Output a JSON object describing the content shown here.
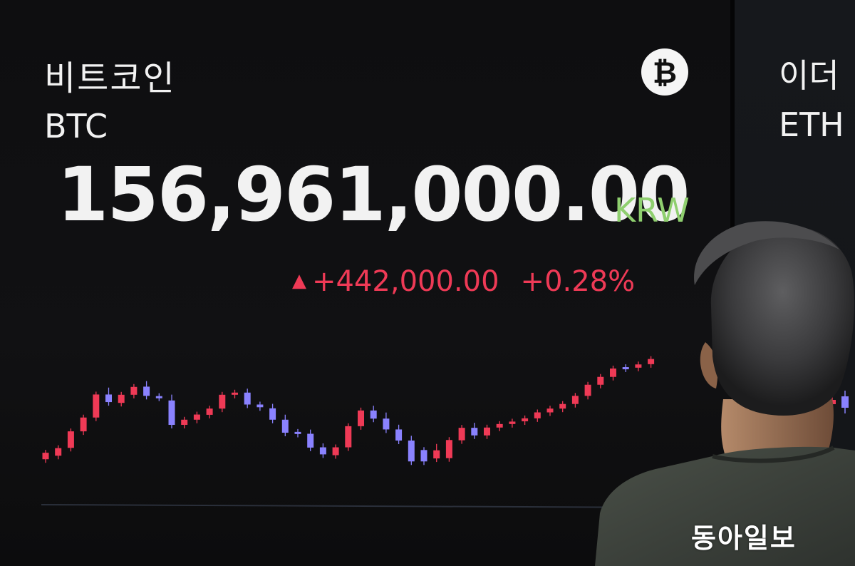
{
  "ticker_main": {
    "name": "비트코인",
    "symbol": "BTC",
    "price": "156,961,000.00",
    "currency": "KRW",
    "change_arrow": "▲",
    "change_value": "+442,000.00",
    "change_percent": "+0.28%",
    "logo_icon": "bitcoin-icon",
    "logo_glyph": "₿"
  },
  "ticker_side": {
    "name": "이더",
    "symbol": "ETH"
  },
  "colors": {
    "up": "#ef3a56",
    "down": "#8a82ff",
    "currency": "#8fcf6f",
    "text": "#f2f2f2"
  },
  "watermark": "동아일보",
  "chart_data": {
    "type": "candlestick",
    "title": "",
    "series": [
      {
        "name": "BTC",
        "candles": [
          [
            0,
            -0.2,
            -2.6,
            0.8,
            "up"
          ],
          [
            1,
            -1.5,
            -4.3,
            -0.5,
            "up"
          ],
          [
            2,
            -4.4,
            -10.5,
            -3.4,
            "up"
          ],
          [
            3,
            -10.5,
            -15.6,
            -9.4,
            "up"
          ],
          [
            4,
            -15.6,
            -24.1,
            -14.0,
            "up"
          ],
          [
            5,
            -24.1,
            -21.3,
            -25.6,
            "down"
          ],
          [
            6,
            -21.0,
            -24.0,
            -17.2,
            "up"
          ],
          [
            7,
            -24.0,
            -26.9,
            -22.7,
            "up"
          ],
          [
            8,
            -27.0,
            -23.6,
            -28.0,
            "down"
          ],
          [
            9,
            -23.5,
            -23.0,
            -22.8,
            "down"
          ],
          [
            10,
            -21.9,
            -12.9,
            -23.0,
            "down"
          ],
          [
            11,
            -12.9,
            -14.8,
            -12.1,
            "up"
          ],
          [
            12,
            -14.8,
            -16.7,
            -14.1,
            "up"
          ],
          [
            13,
            -16.6,
            -18.9,
            -16.0,
            "up"
          ],
          [
            14,
            -18.9,
            -24.0,
            -18.3,
            "up"
          ],
          [
            15,
            -24.0,
            -24.8,
            -23.3,
            "up"
          ],
          [
            16,
            -24.8,
            -20.4,
            -25.2,
            "down"
          ],
          [
            17,
            -20.4,
            -19.4,
            -19.0,
            "down"
          ],
          [
            18,
            -19.0,
            -14.8,
            -19.6,
            "down"
          ],
          [
            19,
            -14.8,
            -10.0,
            -15.6,
            "down"
          ],
          [
            20,
            -10.3,
            -9.6,
            -9.5,
            "down"
          ],
          [
            21,
            -9.6,
            -4.5,
            -10.1,
            "down"
          ],
          [
            22,
            -4.6,
            -2.0,
            -5.0,
            "down"
          ],
          [
            23,
            -1.7,
            -4.6,
            -1.0,
            "up"
          ],
          [
            24,
            -4.6,
            -12.4,
            -4.0,
            "up"
          ],
          [
            25,
            -12.4,
            -18.2,
            -11.6,
            "up"
          ],
          [
            26,
            -18.2,
            -15.2,
            -18.9,
            "down"
          ],
          [
            27,
            -15.2,
            -11.2,
            -16.4,
            "down"
          ],
          [
            28,
            -11.2,
            -7.1,
            -11.9,
            "down"
          ],
          [
            29,
            -7.1,
            0.6,
            -7.8,
            "down"
          ],
          [
            30,
            0.6,
            -3.6,
            1.5,
            "down"
          ],
          [
            31,
            -3.5,
            -0.5,
            -4.8,
            "up"
          ],
          [
            32,
            -0.6,
            -7.3,
            0.4,
            "up"
          ],
          [
            33,
            -7.2,
            -11.8,
            -6.4,
            "up"
          ],
          [
            34,
            -11.8,
            -9.0,
            -12.6,
            "down"
          ],
          [
            35,
            -9.0,
            -11.9,
            -8.3,
            "up"
          ],
          [
            36,
            -11.9,
            -13.2,
            -11.4,
            "up"
          ],
          [
            37,
            -13.2,
            -14.1,
            -12.8,
            "up"
          ],
          [
            38,
            -14.2,
            -15.3,
            -13.9,
            "up"
          ],
          [
            39,
            -15.3,
            -17.5,
            -14.8,
            "up"
          ],
          [
            40,
            -17.5,
            -18.9,
            -17.0,
            "up"
          ],
          [
            41,
            -18.9,
            -20.6,
            -18.3,
            "up"
          ],
          [
            42,
            -20.6,
            -23.6,
            -20.0,
            "up"
          ],
          [
            43,
            -23.6,
            -27.7,
            -22.9,
            "up"
          ],
          [
            44,
            -27.7,
            -30.6,
            -27.0,
            "up"
          ],
          [
            45,
            -30.6,
            -33.7,
            -30.0,
            "up"
          ],
          [
            46,
            -33.7,
            -34.2,
            -33.4,
            "down"
          ],
          [
            47,
            -34.0,
            -35.2,
            -33.6,
            "up"
          ],
          [
            48,
            -35.3,
            -37.2,
            -34.9,
            "up"
          ]
        ]
      }
    ],
    "note": "relative price levels (arbitrary units); candle = [index, open, close, high-ish, direction]"
  }
}
